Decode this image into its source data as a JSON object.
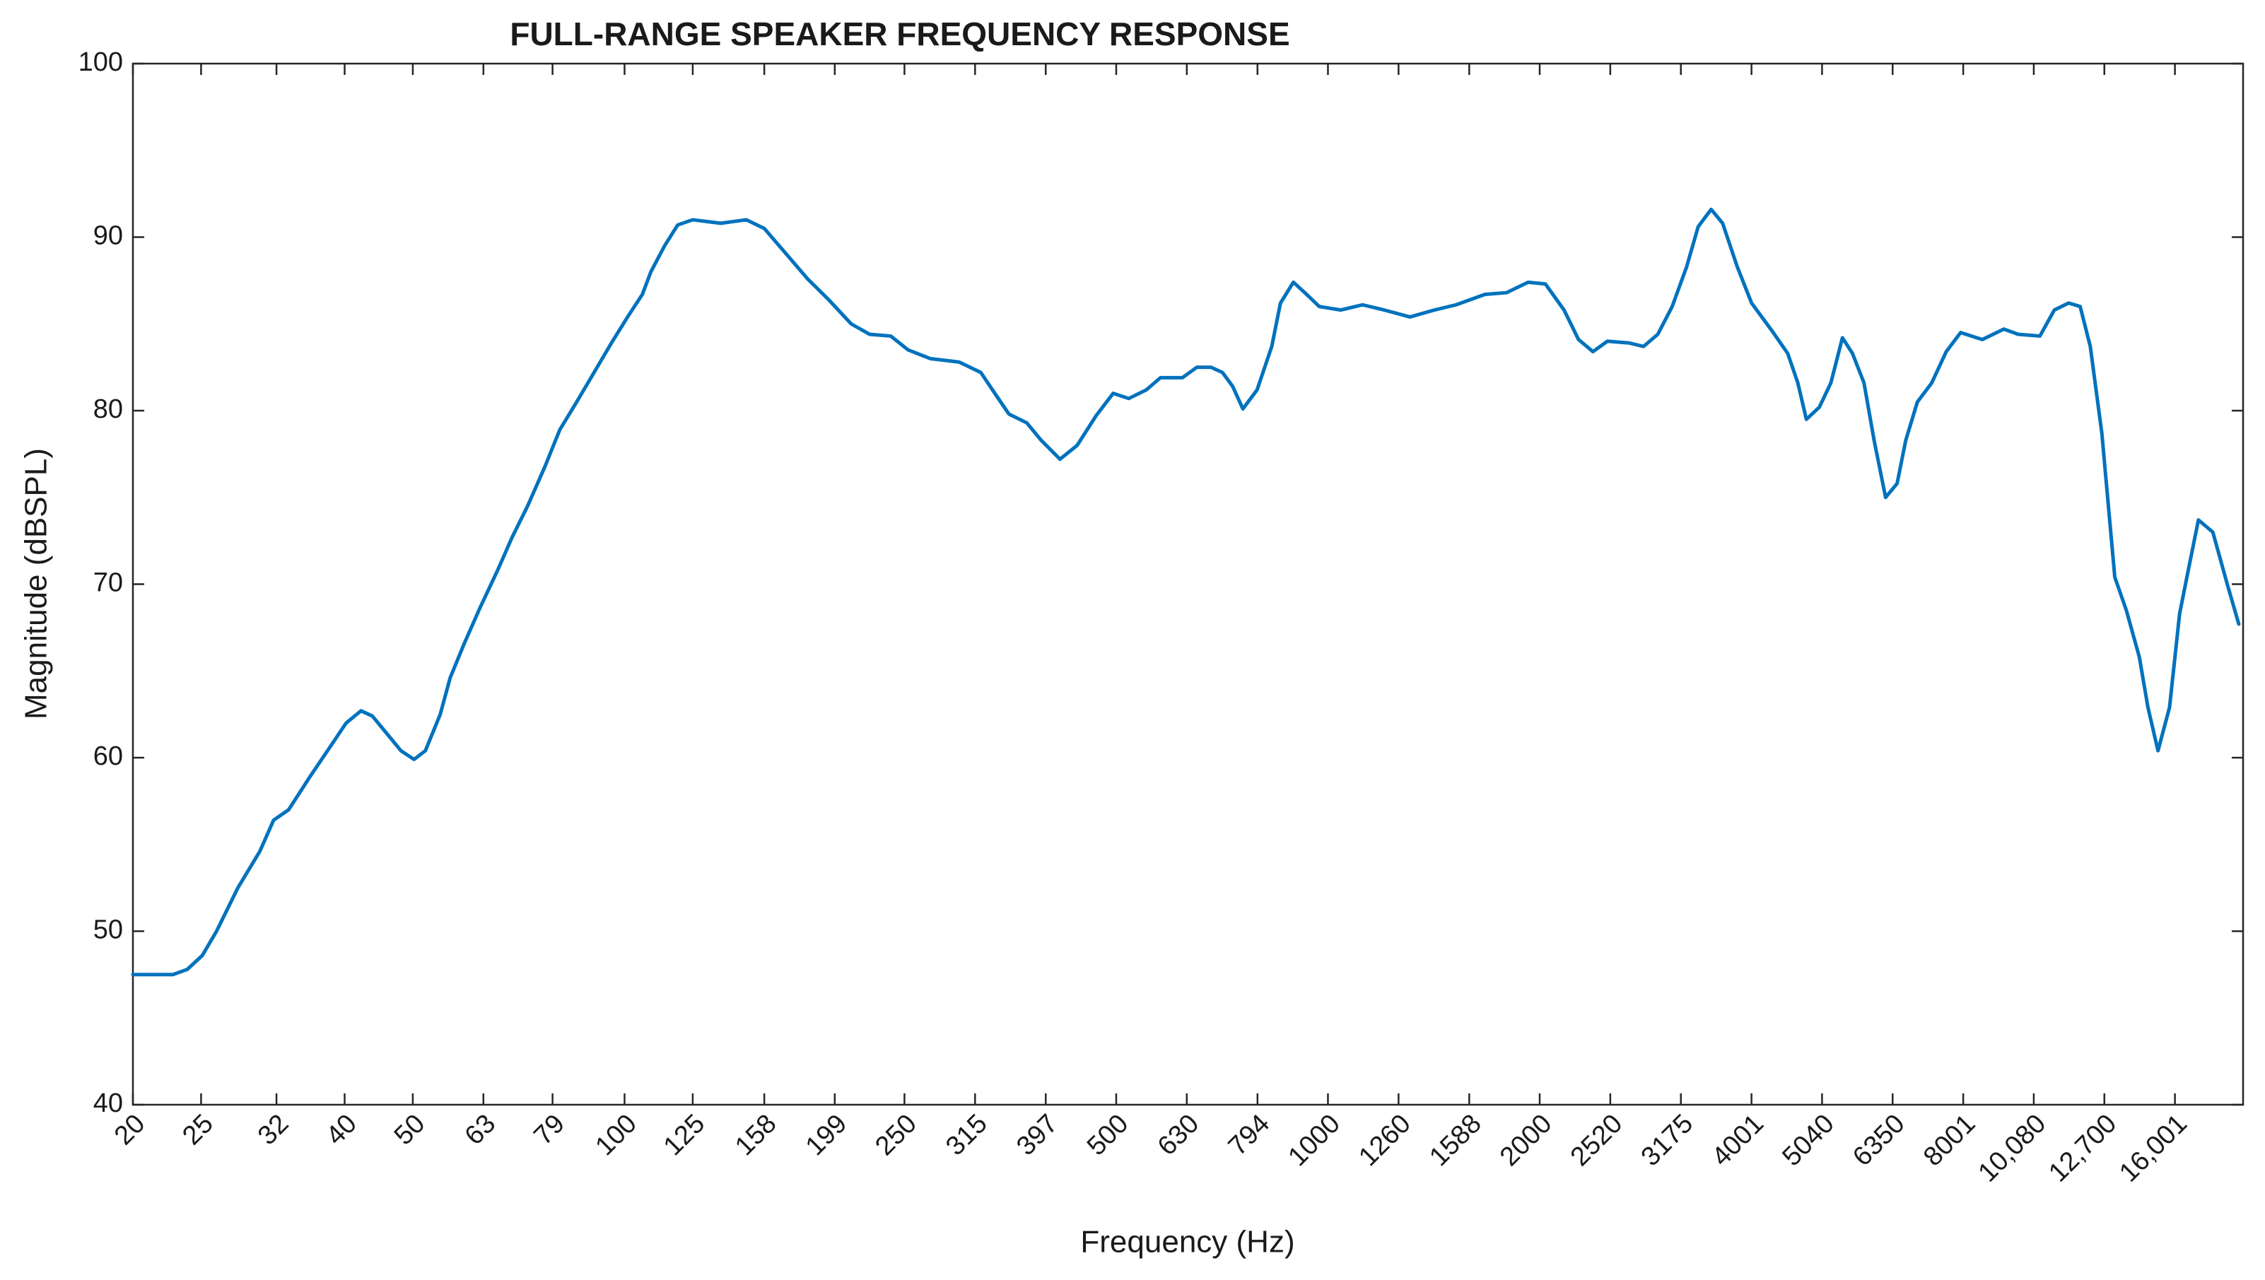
{
  "chart_data": {
    "type": "line",
    "title": "FULL-RANGE SPEAKER FREQUENCY RESPONSE",
    "x_label": "Frequency (Hz)",
    "y_label": "Magnitude (dBSPL)",
    "xscale": "log",
    "xlim": [
      20,
      20000
    ],
    "ylim": [
      40,
      100
    ],
    "xticks": [
      20,
      25,
      32,
      40,
      50,
      63,
      79,
      100,
      125,
      158,
      199,
      250,
      315,
      397,
      500,
      630,
      794,
      1000,
      1260,
      1588,
      2000,
      2520,
      3175,
      4001,
      5040,
      6350,
      8001,
      {
        "value": 10080,
        "label": "10,080"
      },
      {
        "value": 12700,
        "label": "12,700"
      },
      {
        "value": 16001,
        "label": "16,001"
      }
    ],
    "yticks": [
      40,
      50,
      60,
      70,
      80,
      90,
      100
    ],
    "x": [
      20,
      22.8,
      23.9,
      25.1,
      26.3,
      28.2,
      30.3,
      31.7,
      33.3,
      35.7,
      38.4,
      40.2,
      42.2,
      43.8,
      45.9,
      48.1,
      50.2,
      52.1,
      54.7,
      56.5,
      59.2,
      62.4,
      66.0,
      69.2,
      72.8,
      77.1,
      80.9,
      85.5,
      90.5,
      95.8,
      101,
      106,
      109,
      114,
      119,
      125,
      137,
      149,
      158,
      170,
      182,
      195,
      210,
      223,
      239,
      253,
      272,
      299,
      321,
      336,
      352,
      373,
      391,
      416,
      440,
      468,
      495,
      521,
      552,
      578,
      621,
      651,
      682,
      708,
      732,
      757,
      793,
      832,
      856,
      893,
      927,
      972,
      1043,
      1120,
      1202,
      1308,
      1417,
      1521,
      1672,
      1795,
      1926,
      2038,
      2166,
      2271,
      2381,
      2496,
      2680,
      2810,
      2944,
      3086,
      3236,
      3360,
      3506,
      3640,
      3818,
      4002,
      4296,
      4504,
      4656,
      4788,
      4996,
      5188,
      5388,
      5568,
      5782,
      5976,
      6206,
      6444,
      6630,
      6886,
      7218,
      7568,
      7934,
      8516,
      9138,
      9580,
      10284,
      10782,
      11298,
      11734,
      12128,
      12596,
      13142,
      13646,
      14240,
      14648,
      15138,
      15720,
      16248,
      16714,
      17280,
      18114,
      18990,
      19720
    ],
    "series": [
      {
        "color": "#0072bd",
        "values": [
          47.5,
          47.5,
          47.8,
          48.6,
          50,
          52.5,
          54.6,
          56.4,
          57,
          58.9,
          60.8,
          62,
          62.7,
          62.4,
          61.4,
          60.4,
          59.9,
          60.4,
          62.5,
          64.6,
          66.6,
          68.7,
          70.8,
          72.7,
          74.5,
          76.8,
          78.9,
          80.5,
          82.2,
          83.9,
          85.4,
          86.7,
          88.0,
          89.5,
          90.7,
          91.0,
          90.8,
          91.0,
          90.5,
          89.0,
          87.6,
          86.4,
          85.0,
          84.4,
          84.3,
          83.5,
          83.0,
          82.8,
          82.2,
          81.0,
          79.8,
          79.3,
          78.3,
          77.2,
          78.0,
          79.7,
          81.0,
          80.7,
          81.2,
          81.9,
          81.9,
          82.5,
          82.5,
          82.2,
          81.4,
          80.1,
          81.2,
          83.7,
          86.2,
          87.4,
          86.8,
          86.0,
          85.8,
          86.1,
          85.8,
          85.4,
          85.8,
          86.1,
          86.7,
          86.8,
          87.4,
          87.3,
          85.8,
          84.1,
          83.4,
          84.0,
          83.9,
          83.7,
          84.4,
          86.0,
          88.3,
          90.6,
          91.6,
          90.8,
          88.3,
          86.2,
          84.5,
          83.3,
          81.6,
          79.5,
          80.2,
          81.6,
          84.2,
          83.3,
          81.6,
          78.3,
          75.0,
          75.8,
          78.3,
          80.5,
          81.6,
          83.4,
          84.5,
          84.1,
          84.7,
          84.4,
          84.3,
          85.8,
          86.2,
          86.0,
          83.7,
          78.7,
          70.4,
          68.5,
          65.8,
          62.9,
          60.4,
          62.9,
          68.3,
          70.8,
          73.7,
          73.0,
          70.0,
          67.7
        ]
      }
    ]
  }
}
